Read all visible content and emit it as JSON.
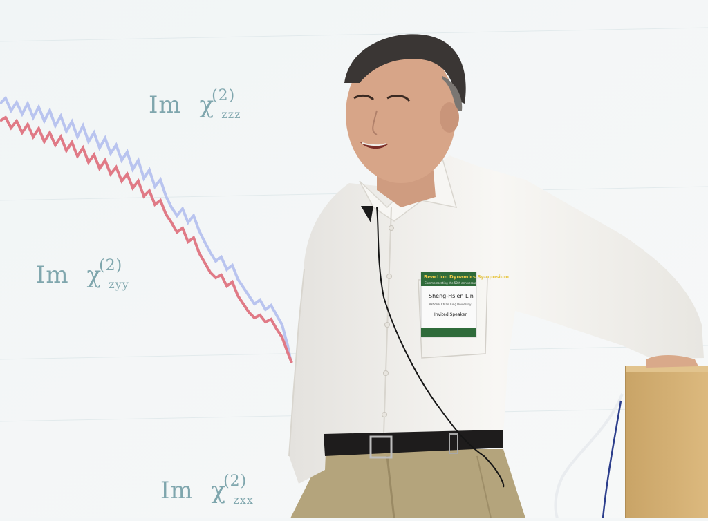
{
  "slide": {
    "labels": [
      {
        "im": "Im",
        "chi": "χ",
        "sup": "(2)",
        "sub": "zzz"
      },
      {
        "im": "Im",
        "chi": "χ",
        "sup": "(2)",
        "sub": "zyy"
      },
      {
        "im": "Im",
        "chi": "χ",
        "sup": "(2)",
        "sub": "zxx"
      }
    ]
  },
  "badge": {
    "event": "Reaction Dynamics Symposium",
    "subtitle": "Commemorating the 50th anniversary",
    "name": "Sheng-Hsien Lin",
    "affiliation": "National Chiao Tung University",
    "role": "Invited Speaker"
  },
  "colors": {
    "slide_bg": "#f3f6f7",
    "curve_red": "#e07a86",
    "curve_blue": "#b9c4ef",
    "shirt": "#f4f2ee",
    "trousers": "#b4a47c",
    "podium": "#d4b074",
    "badge_green": "#2f6b3a"
  }
}
